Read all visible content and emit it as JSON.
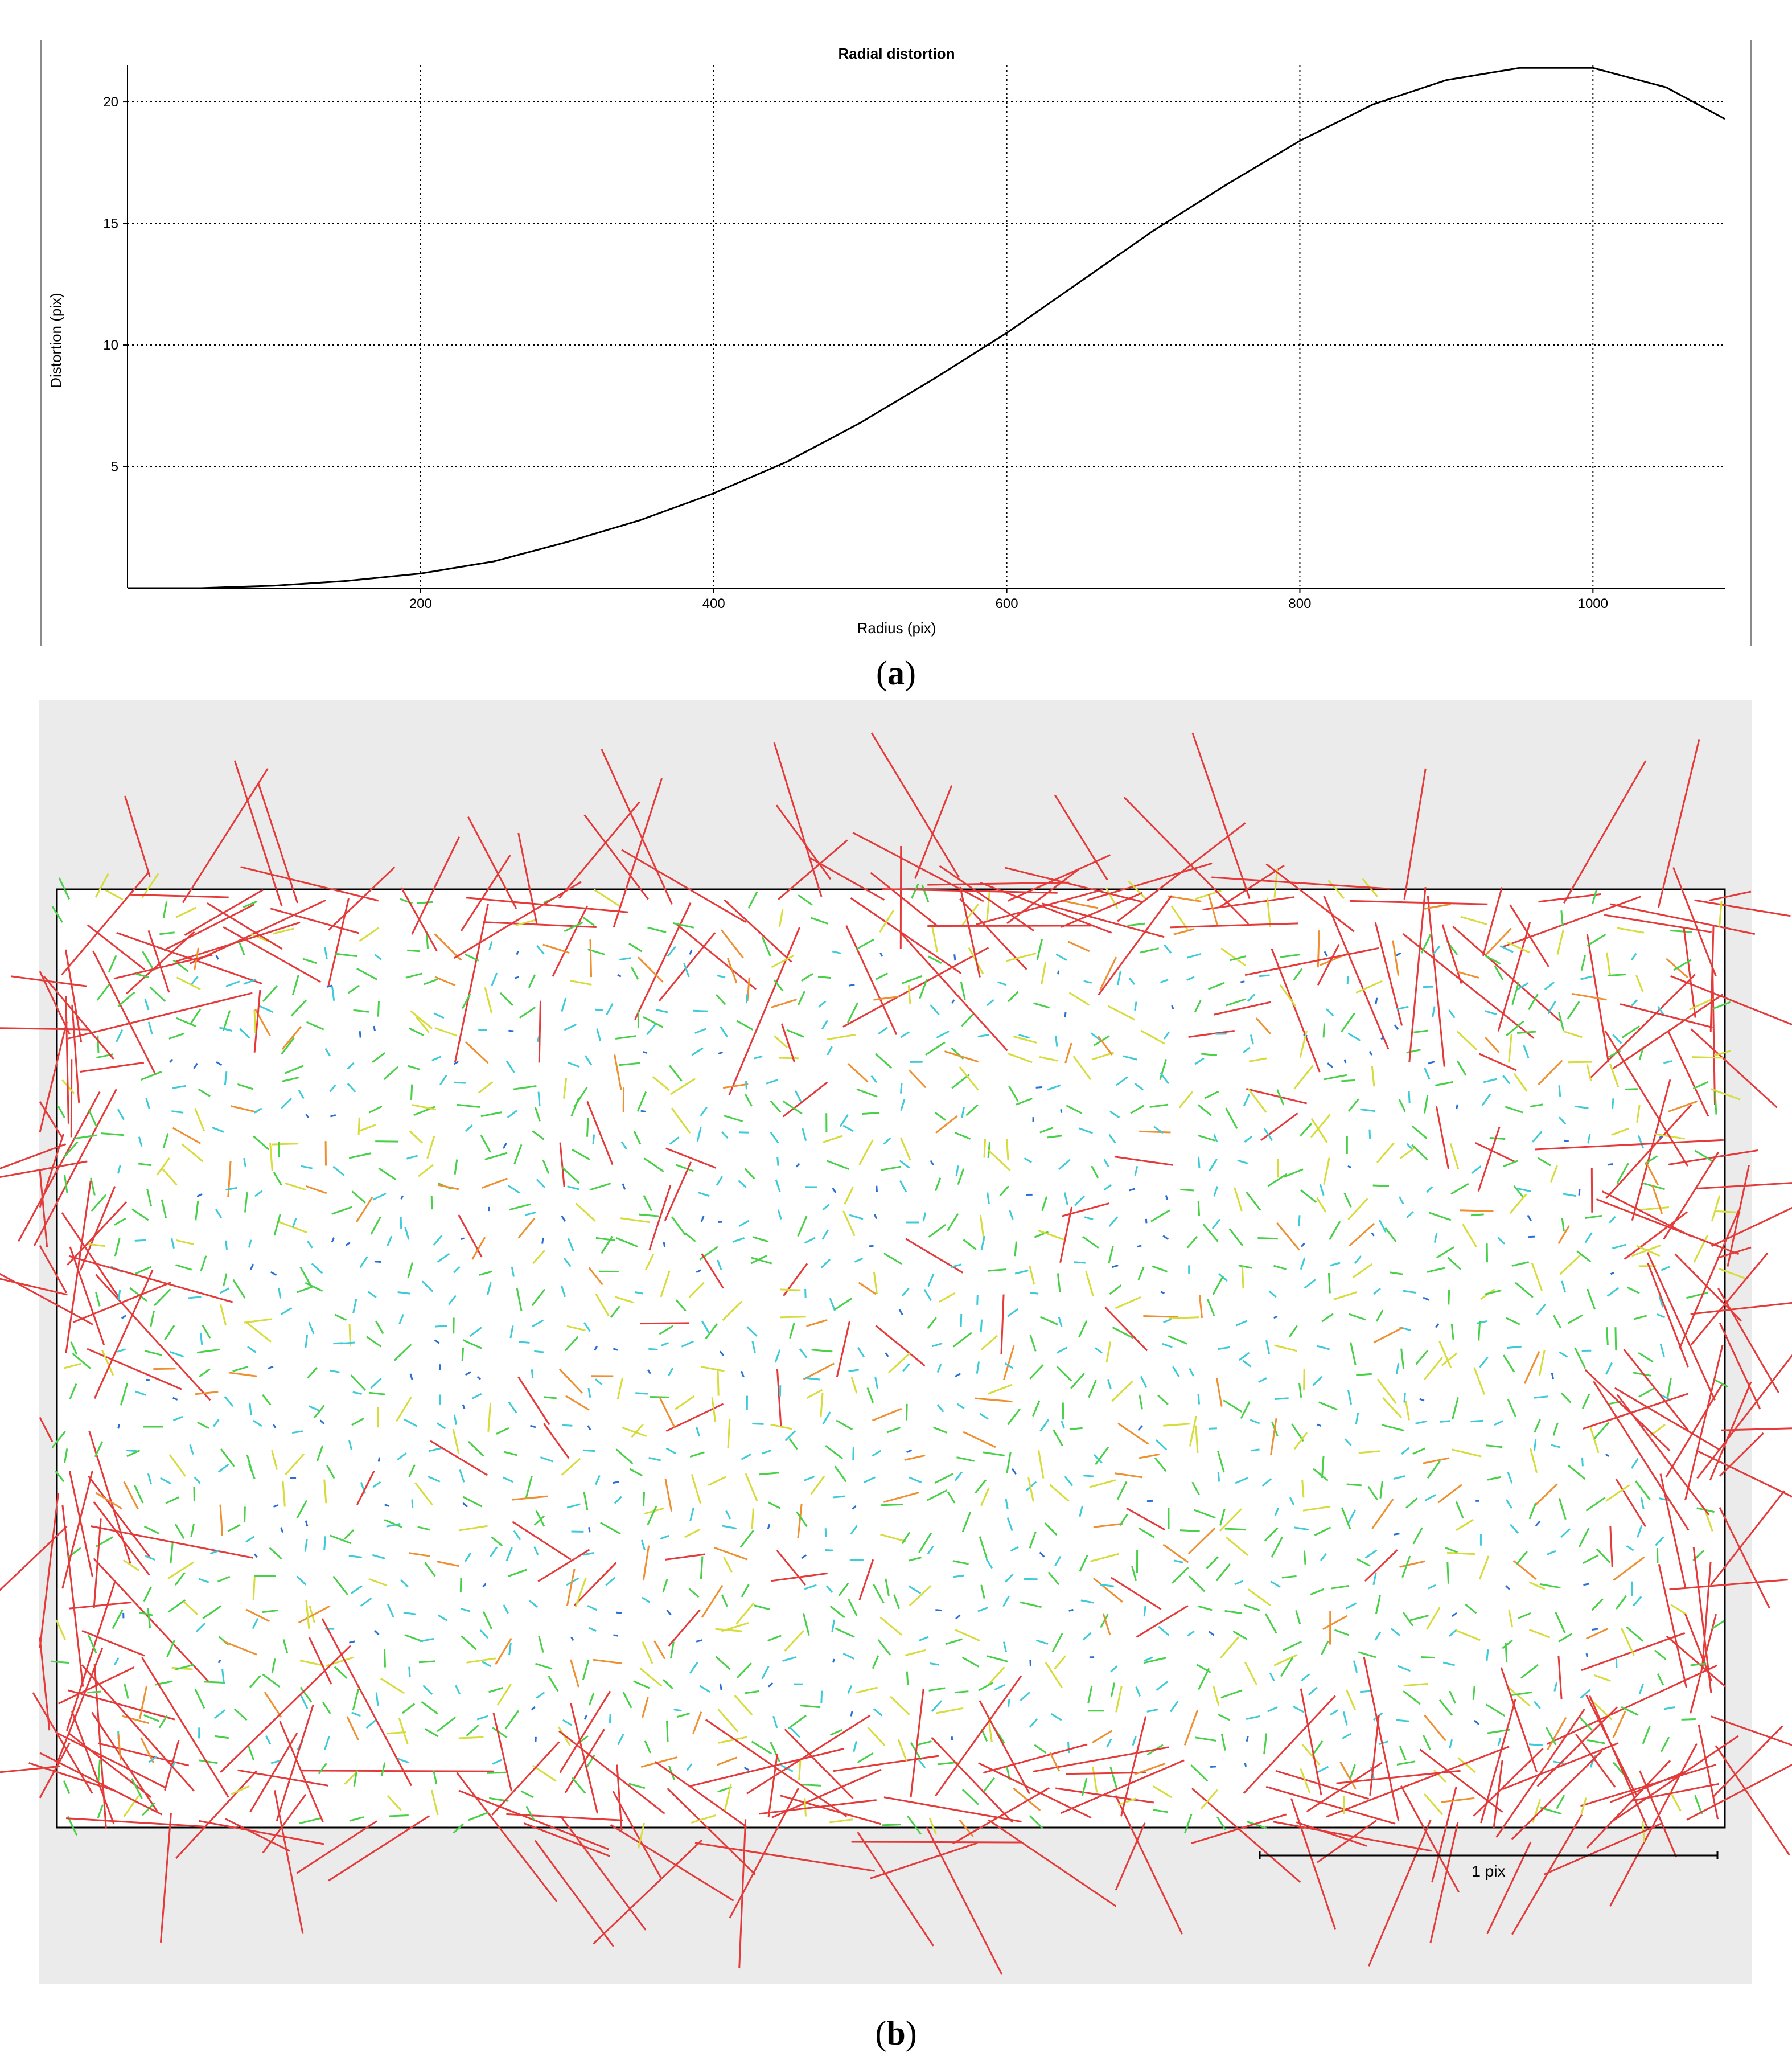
{
  "panel_a": {
    "caption_open": "(",
    "caption_letter": "a",
    "caption_close": ")"
  },
  "panel_b": {
    "caption_open": "(",
    "caption_letter": "b",
    "caption_close": ")",
    "scale_label": "1 pix"
  },
  "chart_data": [
    {
      "type": "line",
      "title": "Radial distortion",
      "xlabel": "Radius (pix)",
      "ylabel": "Distortion (pix)",
      "xlim": [
        0,
        1090
      ],
      "ylim": [
        0,
        21.5
      ],
      "xticks": [
        200,
        400,
        600,
        800,
        1000
      ],
      "xtick_labels": [
        "200",
        "400",
        "600",
        "800",
        "1000"
      ],
      "yticks": [
        5,
        10,
        15,
        20
      ],
      "ytick_labels": [
        "5",
        "10",
        "15",
        "20"
      ],
      "grid": true,
      "line_color": "#000000",
      "x": [
        0,
        50,
        100,
        150,
        200,
        250,
        300,
        350,
        400,
        450,
        500,
        550,
        600,
        650,
        700,
        750,
        800,
        850,
        900,
        950,
        1000,
        1050,
        1090
      ],
      "y": [
        0,
        0.0,
        0.1,
        0.3,
        0.6,
        1.1,
        1.9,
        2.8,
        3.9,
        5.2,
        6.8,
        8.6,
        10.5,
        12.6,
        14.7,
        16.6,
        18.4,
        19.9,
        20.9,
        21.4,
        21.4,
        20.6,
        19.3
      ]
    },
    {
      "type": "vector-field",
      "title": "",
      "scale_label": "1 pix",
      "magnitude_colors": [
        "#2a6fd6",
        "#3ecbd8",
        "#48d048",
        "#d6dc3a",
        "#ee9030",
        "#e43a3a"
      ],
      "background": "#ebebeb",
      "frame_color": "#000000"
    }
  ]
}
